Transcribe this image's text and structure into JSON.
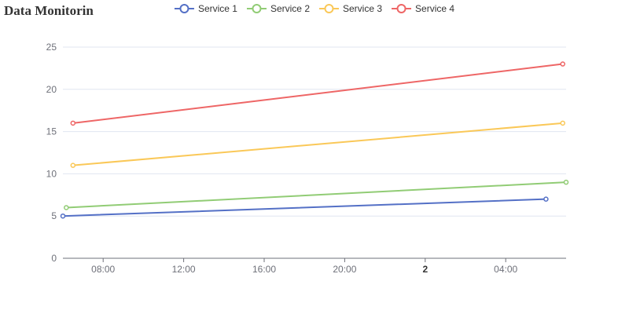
{
  "chart_data": {
    "type": "line",
    "title": "Data Monitorin",
    "xlabel": "",
    "ylabel": "",
    "ylim": [
      0,
      25
    ],
    "y_ticks": [
      0,
      5,
      10,
      15,
      20,
      25
    ],
    "x_range": [
      "2024-01-01 06:00",
      "2024-01-02 07:00"
    ],
    "x_ticks": [
      {
        "label": "08:00",
        "at": "2024-01-01 08:00",
        "bold": false
      },
      {
        "label": "12:00",
        "at": "2024-01-01 12:00",
        "bold": false
      },
      {
        "label": "16:00",
        "at": "2024-01-01 16:00",
        "bold": false
      },
      {
        "label": "20:00",
        "at": "2024-01-01 20:00",
        "bold": false
      },
      {
        "label": "2",
        "at": "2024-01-02 00:00",
        "bold": true
      },
      {
        "label": "04:00",
        "at": "2024-01-02 04:00",
        "bold": false
      }
    ],
    "grid": true,
    "legend": "top-center",
    "series": [
      {
        "name": "Service 1",
        "color": "#5470c6",
        "points": [
          {
            "x": "2024-01-01 06:00",
            "y": 5
          },
          {
            "x": "2024-01-02 06:00",
            "y": 7
          }
        ]
      },
      {
        "name": "Service 2",
        "color": "#91cc75",
        "points": [
          {
            "x": "2024-01-01 06:10",
            "y": 6
          },
          {
            "x": "2024-01-02 07:00",
            "y": 9
          }
        ]
      },
      {
        "name": "Service 3",
        "color": "#fac858",
        "points": [
          {
            "x": "2024-01-01 06:30",
            "y": 11
          },
          {
            "x": "2024-01-02 06:50",
            "y": 16
          }
        ]
      },
      {
        "name": "Service 4",
        "color": "#ee6666",
        "points": [
          {
            "x": "2024-01-01 06:30",
            "y": 16
          },
          {
            "x": "2024-01-02 06:50",
            "y": 23
          }
        ]
      }
    ]
  }
}
